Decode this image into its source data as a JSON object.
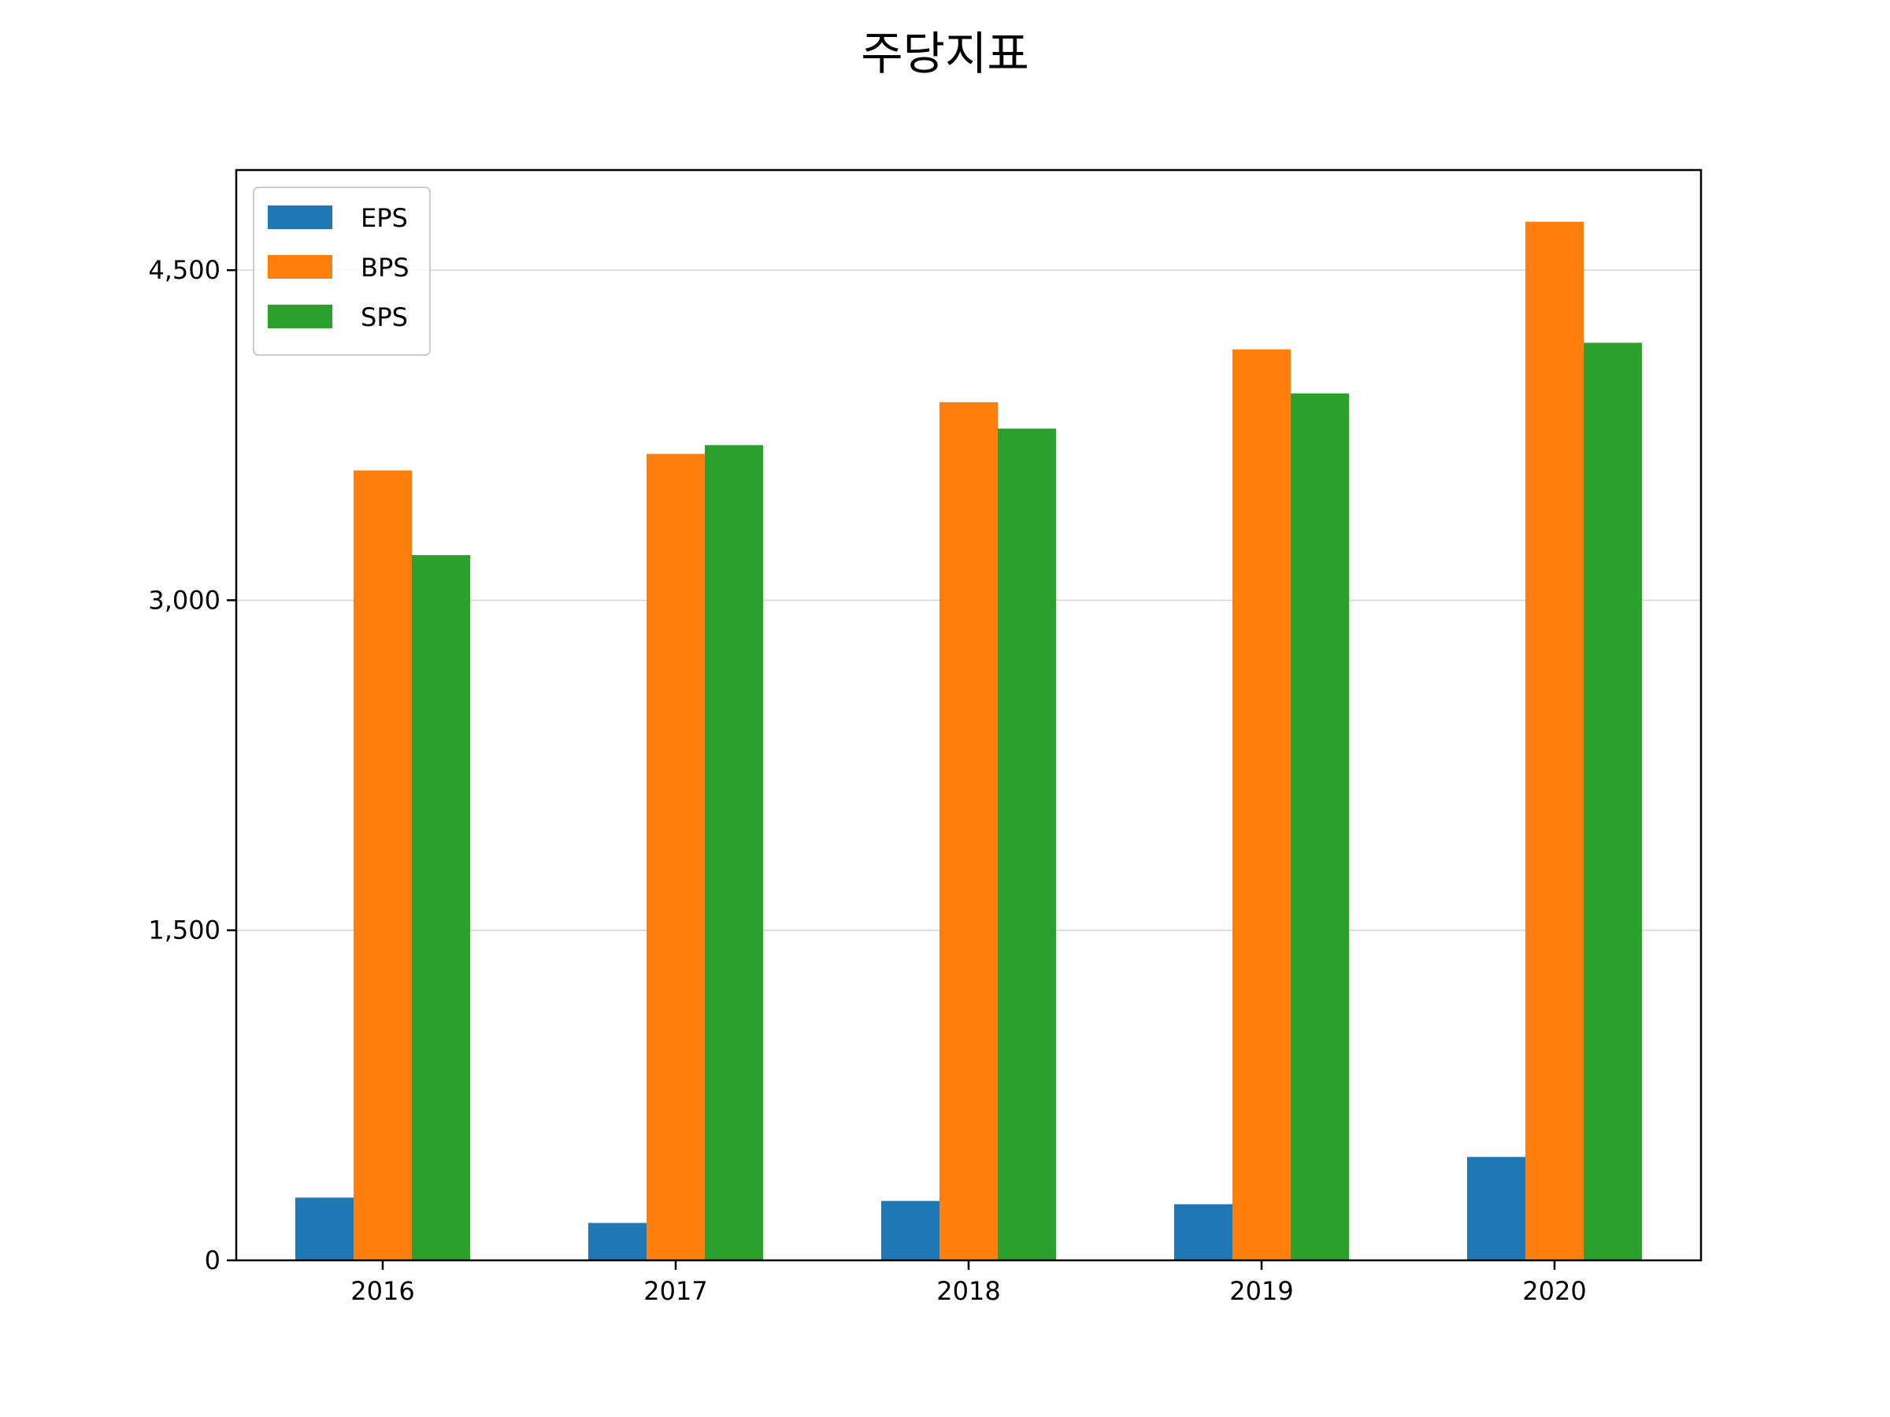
{
  "chart_data": {
    "type": "bar",
    "title": "주당지표",
    "xlabel": "",
    "ylabel": "",
    "categories": [
      "2016",
      "2017",
      "2018",
      "2019",
      "2020"
    ],
    "series": [
      {
        "name": "EPS",
        "color": "#1f77b4",
        "values": [
          285,
          170,
          270,
          255,
          470
        ]
      },
      {
        "name": "BPS",
        "color": "#ff7f0e",
        "values": [
          3590,
          3665,
          3900,
          4140,
          4720
        ]
      },
      {
        "name": "SPS",
        "color": "#2ca02c",
        "values": [
          3205,
          3705,
          3780,
          3940,
          4170
        ]
      }
    ],
    "yticks": [
      0,
      1500,
      3000,
      4500
    ],
    "ytick_labels": [
      "0",
      "1,500",
      "3,000",
      "4,500"
    ],
    "ylim": [
      0,
      4955
    ],
    "grid": "y",
    "legend": "top-left"
  }
}
